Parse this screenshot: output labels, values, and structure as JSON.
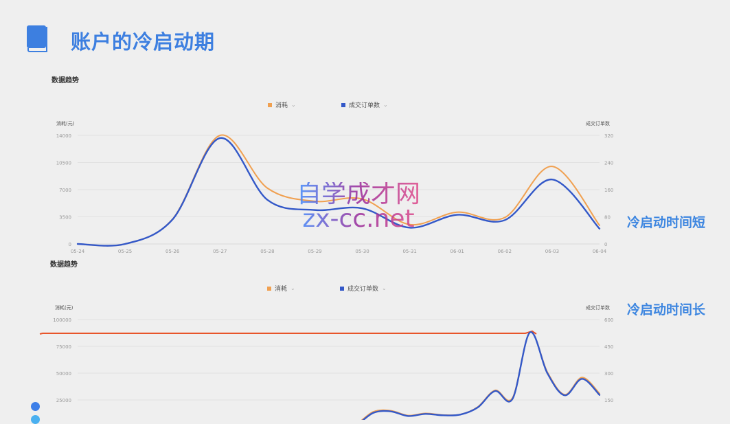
{
  "header": {
    "title": "账户的冷启动期",
    "icon": "book-icon"
  },
  "watermark": {
    "line1": "自学成才网",
    "line2": "zx-cc.net"
  },
  "colors": {
    "spend": "#f0a050",
    "orders": "#3358c8",
    "title": "#3d7fe0",
    "marker_line": "#e8552a"
  },
  "chart_data": [
    {
      "type": "line",
      "section_title": "数据趋势",
      "side_label": "冷启动时间短",
      "legend": [
        {
          "label": "消耗",
          "color": "#f0a050"
        },
        {
          "label": "成交订单数",
          "color": "#3358c8"
        }
      ],
      "ylabel_left": "消耗(元)",
      "ylabel_right": "成交订单数",
      "categories": [
        "05-24",
        "05-25",
        "05-26",
        "05-27",
        "05-28",
        "05-29",
        "05-30",
        "05-31",
        "06-01",
        "06-02",
        "06-03",
        "06-04"
      ],
      "yticks_left": [
        "0",
        "3500",
        "7000",
        "10500",
        "14000"
      ],
      "yticks_right": [
        "0",
        "80",
        "160",
        "240",
        "320"
      ],
      "ylim_left": [
        0,
        14000
      ],
      "ylim_right": [
        0,
        320
      ],
      "grid": true,
      "legend_position": "top",
      "series": [
        {
          "name": "消耗",
          "axis": "left",
          "values": [
            0,
            0,
            3200,
            14000,
            7200,
            5500,
            5800,
            2500,
            4100,
            3400,
            10000,
            2400
          ]
        },
        {
          "name": "成交订单数",
          "axis": "right",
          "values": [
            0,
            0,
            72,
            312,
            130,
            100,
            105,
            48,
            86,
            70,
            190,
            45
          ]
        }
      ]
    },
    {
      "type": "line",
      "section_title": "数据趋势",
      "side_label": "冷启动时间长",
      "legend": [
        {
          "label": "消耗",
          "color": "#f0a050"
        },
        {
          "label": "成交订单数",
          "color": "#3358c8"
        }
      ],
      "ylabel_left": "消耗(元)",
      "ylabel_right": "成交订单数",
      "yticks_left": [
        "25000",
        "50000",
        "75000",
        "100000"
      ],
      "yticks_right": [
        "150",
        "300",
        "450",
        "600"
      ],
      "ylim_left": [
        0,
        100000
      ],
      "ylim_right": [
        0,
        600
      ],
      "grid": true,
      "legend_position": "top",
      "series": [
        {
          "name": "消耗",
          "axis": "left",
          "values": [
            0,
            0,
            0,
            0,
            0,
            0,
            0,
            0,
            0,
            0,
            1200,
            0,
            0,
            0,
            0,
            0,
            2500,
            14000,
            15000,
            10500,
            12500,
            11000,
            11500,
            18500,
            34000,
            27000,
            88000,
            51000,
            30000,
            46000,
            31000
          ]
        },
        {
          "name": "成交订单数",
          "axis": "right",
          "values": [
            0,
            0,
            0,
            0,
            0,
            0,
            0,
            0,
            0,
            0,
            0,
            0,
            0,
            0,
            0,
            0,
            10,
            78,
            86,
            60,
            72,
            64,
            68,
            108,
            200,
            156,
            528,
            300,
            176,
            268,
            178
          ]
        }
      ]
    }
  ]
}
